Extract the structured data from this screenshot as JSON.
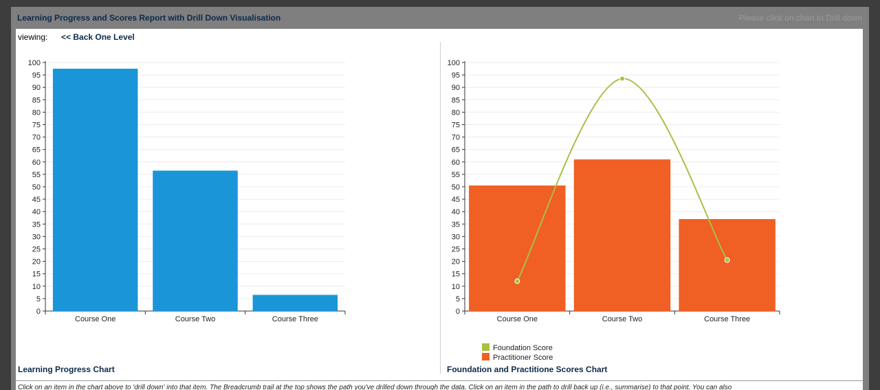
{
  "panel": {
    "title": "Learning Progress and Scores Report with Drill Down Visualisation",
    "drill_hint": "Please click on chart to Drill down"
  },
  "breadcrumb": {
    "viewing_label": "viewing:",
    "back_link": "<< Back One Level"
  },
  "captions": {
    "left": "Learning Progress Chart",
    "right": "Foundation and Practitione Scores Chart"
  },
  "help_text": "Click on an item in the chart above to 'drill down' into that item. The Breadcrumb trail at the top shows the path you've drilled down through the data. Click on an item in the path to drill back up (i.e., summarise) to that point. You can also",
  "colors": {
    "progress_bar": "#1a96d8",
    "practitioner_bar": "#f05f24",
    "foundation_line": "#a7c144"
  },
  "chart_data": [
    {
      "type": "bar",
      "categories": [
        "Course One",
        "Course Two",
        "Course Three"
      ],
      "values": [
        97.5,
        56.5,
        6.5
      ],
      "ylim": [
        0,
        100
      ],
      "yticks": [
        0,
        5,
        10,
        15,
        20,
        25,
        30,
        35,
        40,
        45,
        50,
        55,
        60,
        65,
        70,
        75,
        80,
        85,
        90,
        95,
        100
      ],
      "grid": true
    },
    {
      "type": "bar",
      "categories": [
        "Course One",
        "Course Two",
        "Course Three"
      ],
      "series": [
        {
          "name": "Practitioner Score",
          "type": "bar",
          "values": [
            50.5,
            61,
            37
          ]
        },
        {
          "name": "Foundation Score",
          "type": "line",
          "values": [
            12,
            93.5,
            20.5
          ]
        }
      ],
      "ylim": [
        0,
        100
      ],
      "yticks": [
        0,
        5,
        10,
        15,
        20,
        25,
        30,
        35,
        40,
        45,
        50,
        55,
        60,
        65,
        70,
        75,
        80,
        85,
        90,
        95,
        100
      ],
      "legend": [
        "Foundation Score",
        "Practitioner Score"
      ],
      "legend_position": "bottom-left",
      "grid": true
    }
  ]
}
